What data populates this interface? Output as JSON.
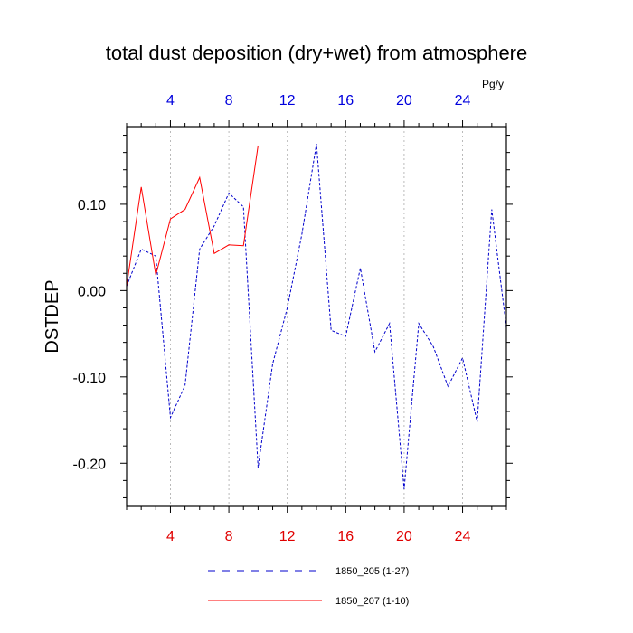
{
  "chart_data": {
    "type": "line",
    "title": "total dust deposition (dry+wet) from atmosphere",
    "ylabel": "DSTDEP",
    "units": "Pg/y",
    "xlim": [
      1,
      27
    ],
    "ylim": [
      -0.25,
      0.19
    ],
    "x_ticks": [
      4,
      8,
      12,
      16,
      20,
      24
    ],
    "y_ticks": [
      0.1,
      0.0,
      -0.1,
      -0.2
    ],
    "y_tick_labels": [
      "0.10",
      "0.00",
      "-0.10",
      "-0.20"
    ],
    "grid": "vertical-dotted",
    "legend_position": "bottom",
    "series": [
      {
        "name": "1850_205 (1-27)",
        "color": "#0000cc",
        "dash": "dashed",
        "x": [
          1,
          2,
          3,
          4,
          5,
          6,
          7,
          8,
          9,
          10,
          11,
          12,
          13,
          14,
          15,
          16,
          17,
          18,
          19,
          20,
          21,
          22,
          23,
          24,
          25,
          26,
          27
        ],
        "y": [
          0.005,
          0.048,
          0.04,
          -0.147,
          -0.11,
          0.048,
          0.075,
          0.113,
          0.097,
          -0.205,
          -0.085,
          -0.02,
          0.065,
          0.17,
          -0.046,
          -0.053,
          0.026,
          -0.071,
          -0.038,
          -0.23,
          -0.038,
          -0.065,
          -0.111,
          -0.078,
          -0.152,
          0.094,
          -0.043
        ]
      },
      {
        "name": "1850_207 (1-10)",
        "color": "#ff0000",
        "dash": "solid",
        "x": [
          1,
          2,
          3,
          4,
          5,
          6,
          7,
          8,
          9,
          10
        ],
        "y": [
          0.005,
          0.12,
          0.018,
          0.083,
          0.094,
          0.131,
          0.043,
          0.053,
          0.052,
          0.168
        ]
      }
    ]
  }
}
